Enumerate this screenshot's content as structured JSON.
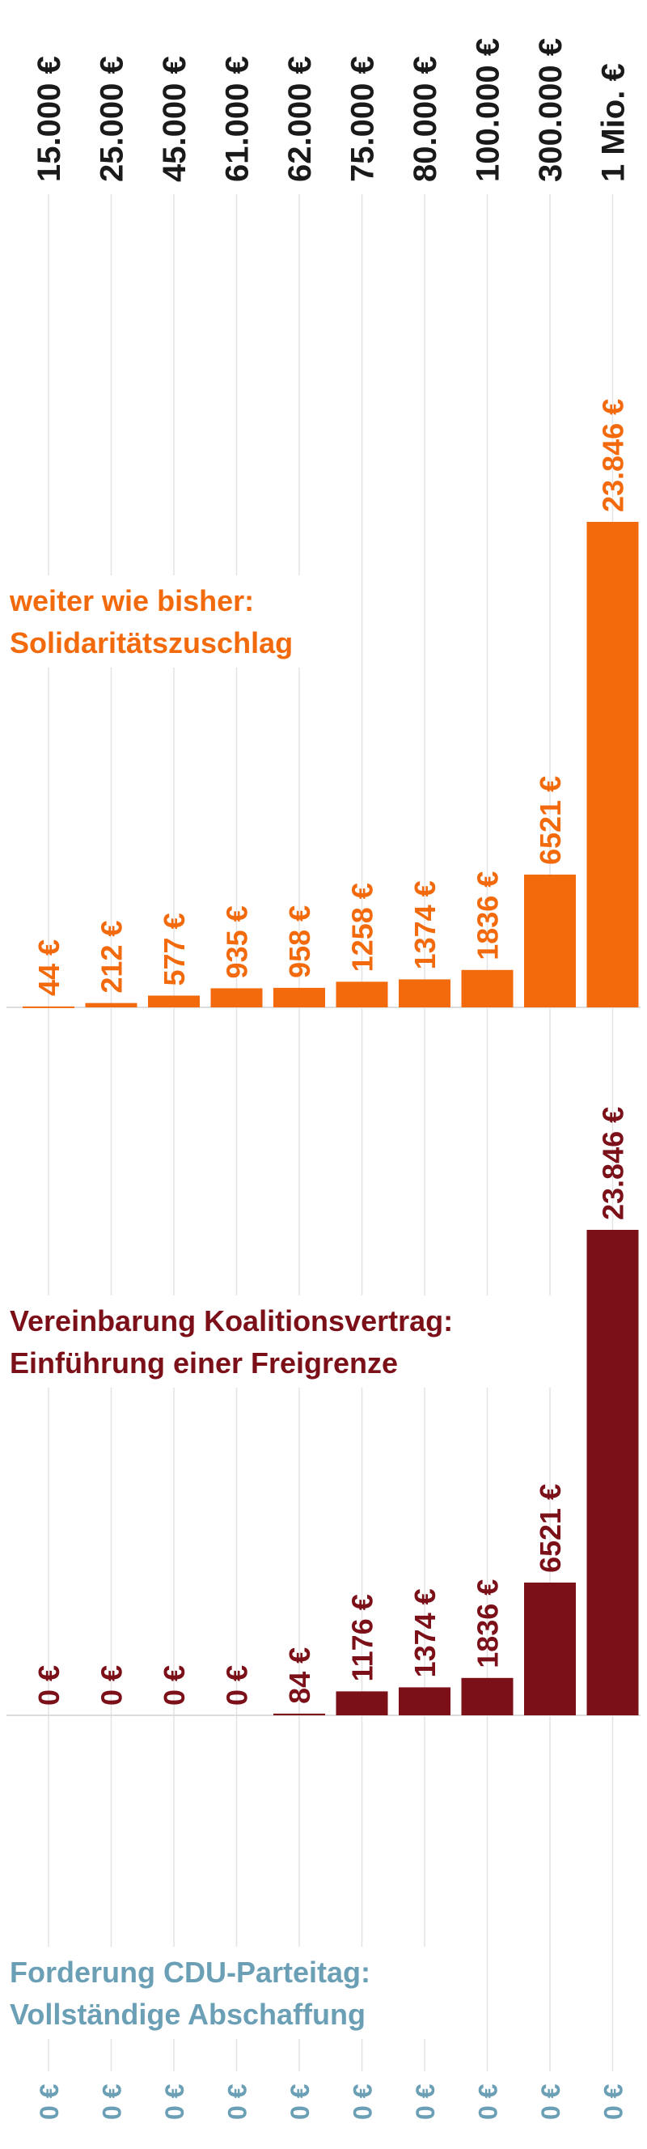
{
  "chart_data": [
    {
      "type": "bar",
      "title": "weiter wie bisher:",
      "subtitle": "Solidaritätszuschlag",
      "color": "#f26a0c",
      "categories": [
        "15.000 €",
        "25.000 €",
        "45.000 €",
        "61.000 €",
        "62.000 €",
        "75.000 €",
        "80.000 €",
        "100.000 €",
        "300.000 €",
        "1 Mio. €"
      ],
      "values": [
        44,
        212,
        577,
        935,
        958,
        1258,
        1374,
        1836,
        6521,
        23846
      ],
      "value_labels": [
        "44 €",
        "212 €",
        "577 €",
        "935 €",
        "958 €",
        "1258 €",
        "1374 €",
        "1836 €",
        "6521 €",
        "23.846 €"
      ]
    },
    {
      "type": "bar",
      "title": "Vereinbarung Koalitionsvertrag:",
      "subtitle": "Einführung einer Freigrenze",
      "color": "#7b1019",
      "categories": [
        "15.000 €",
        "25.000 €",
        "45.000 €",
        "61.000 €",
        "62.000 €",
        "75.000 €",
        "80.000 €",
        "100.000 €",
        "300.000 €",
        "1 Mio. €"
      ],
      "values": [
        0,
        0,
        0,
        0,
        84,
        1176,
        1374,
        1836,
        6521,
        23846
      ],
      "value_labels": [
        "0 €",
        "0 €",
        "0 €",
        "0 €",
        "84 €",
        "1176 €",
        "1374 €",
        "1836 €",
        "6521 €",
        "23.846 €"
      ]
    },
    {
      "type": "bar",
      "title": "Forderung CDU-Parteitag:",
      "subtitle": "Vollständige Abschaffung",
      "color": "#6b9fb5",
      "categories": [
        "15.000 €",
        "25.000 €",
        "45.000 €",
        "61.000 €",
        "62.000 €",
        "75.000 €",
        "80.000 €",
        "100.000 €",
        "300.000 €",
        "1 Mio. €"
      ],
      "values": [
        0,
        0,
        0,
        0,
        0,
        0,
        0,
        0,
        0,
        0
      ],
      "value_labels": [
        "0 €",
        "0 €",
        "0 €",
        "0 €",
        "0 €",
        "0 €",
        "0 €",
        "0 €",
        "0 €",
        "0 €"
      ]
    }
  ],
  "colors": {
    "grid": "#e3e3e3",
    "baseline": "#dddddd",
    "category_text": "#1a1a1a"
  }
}
